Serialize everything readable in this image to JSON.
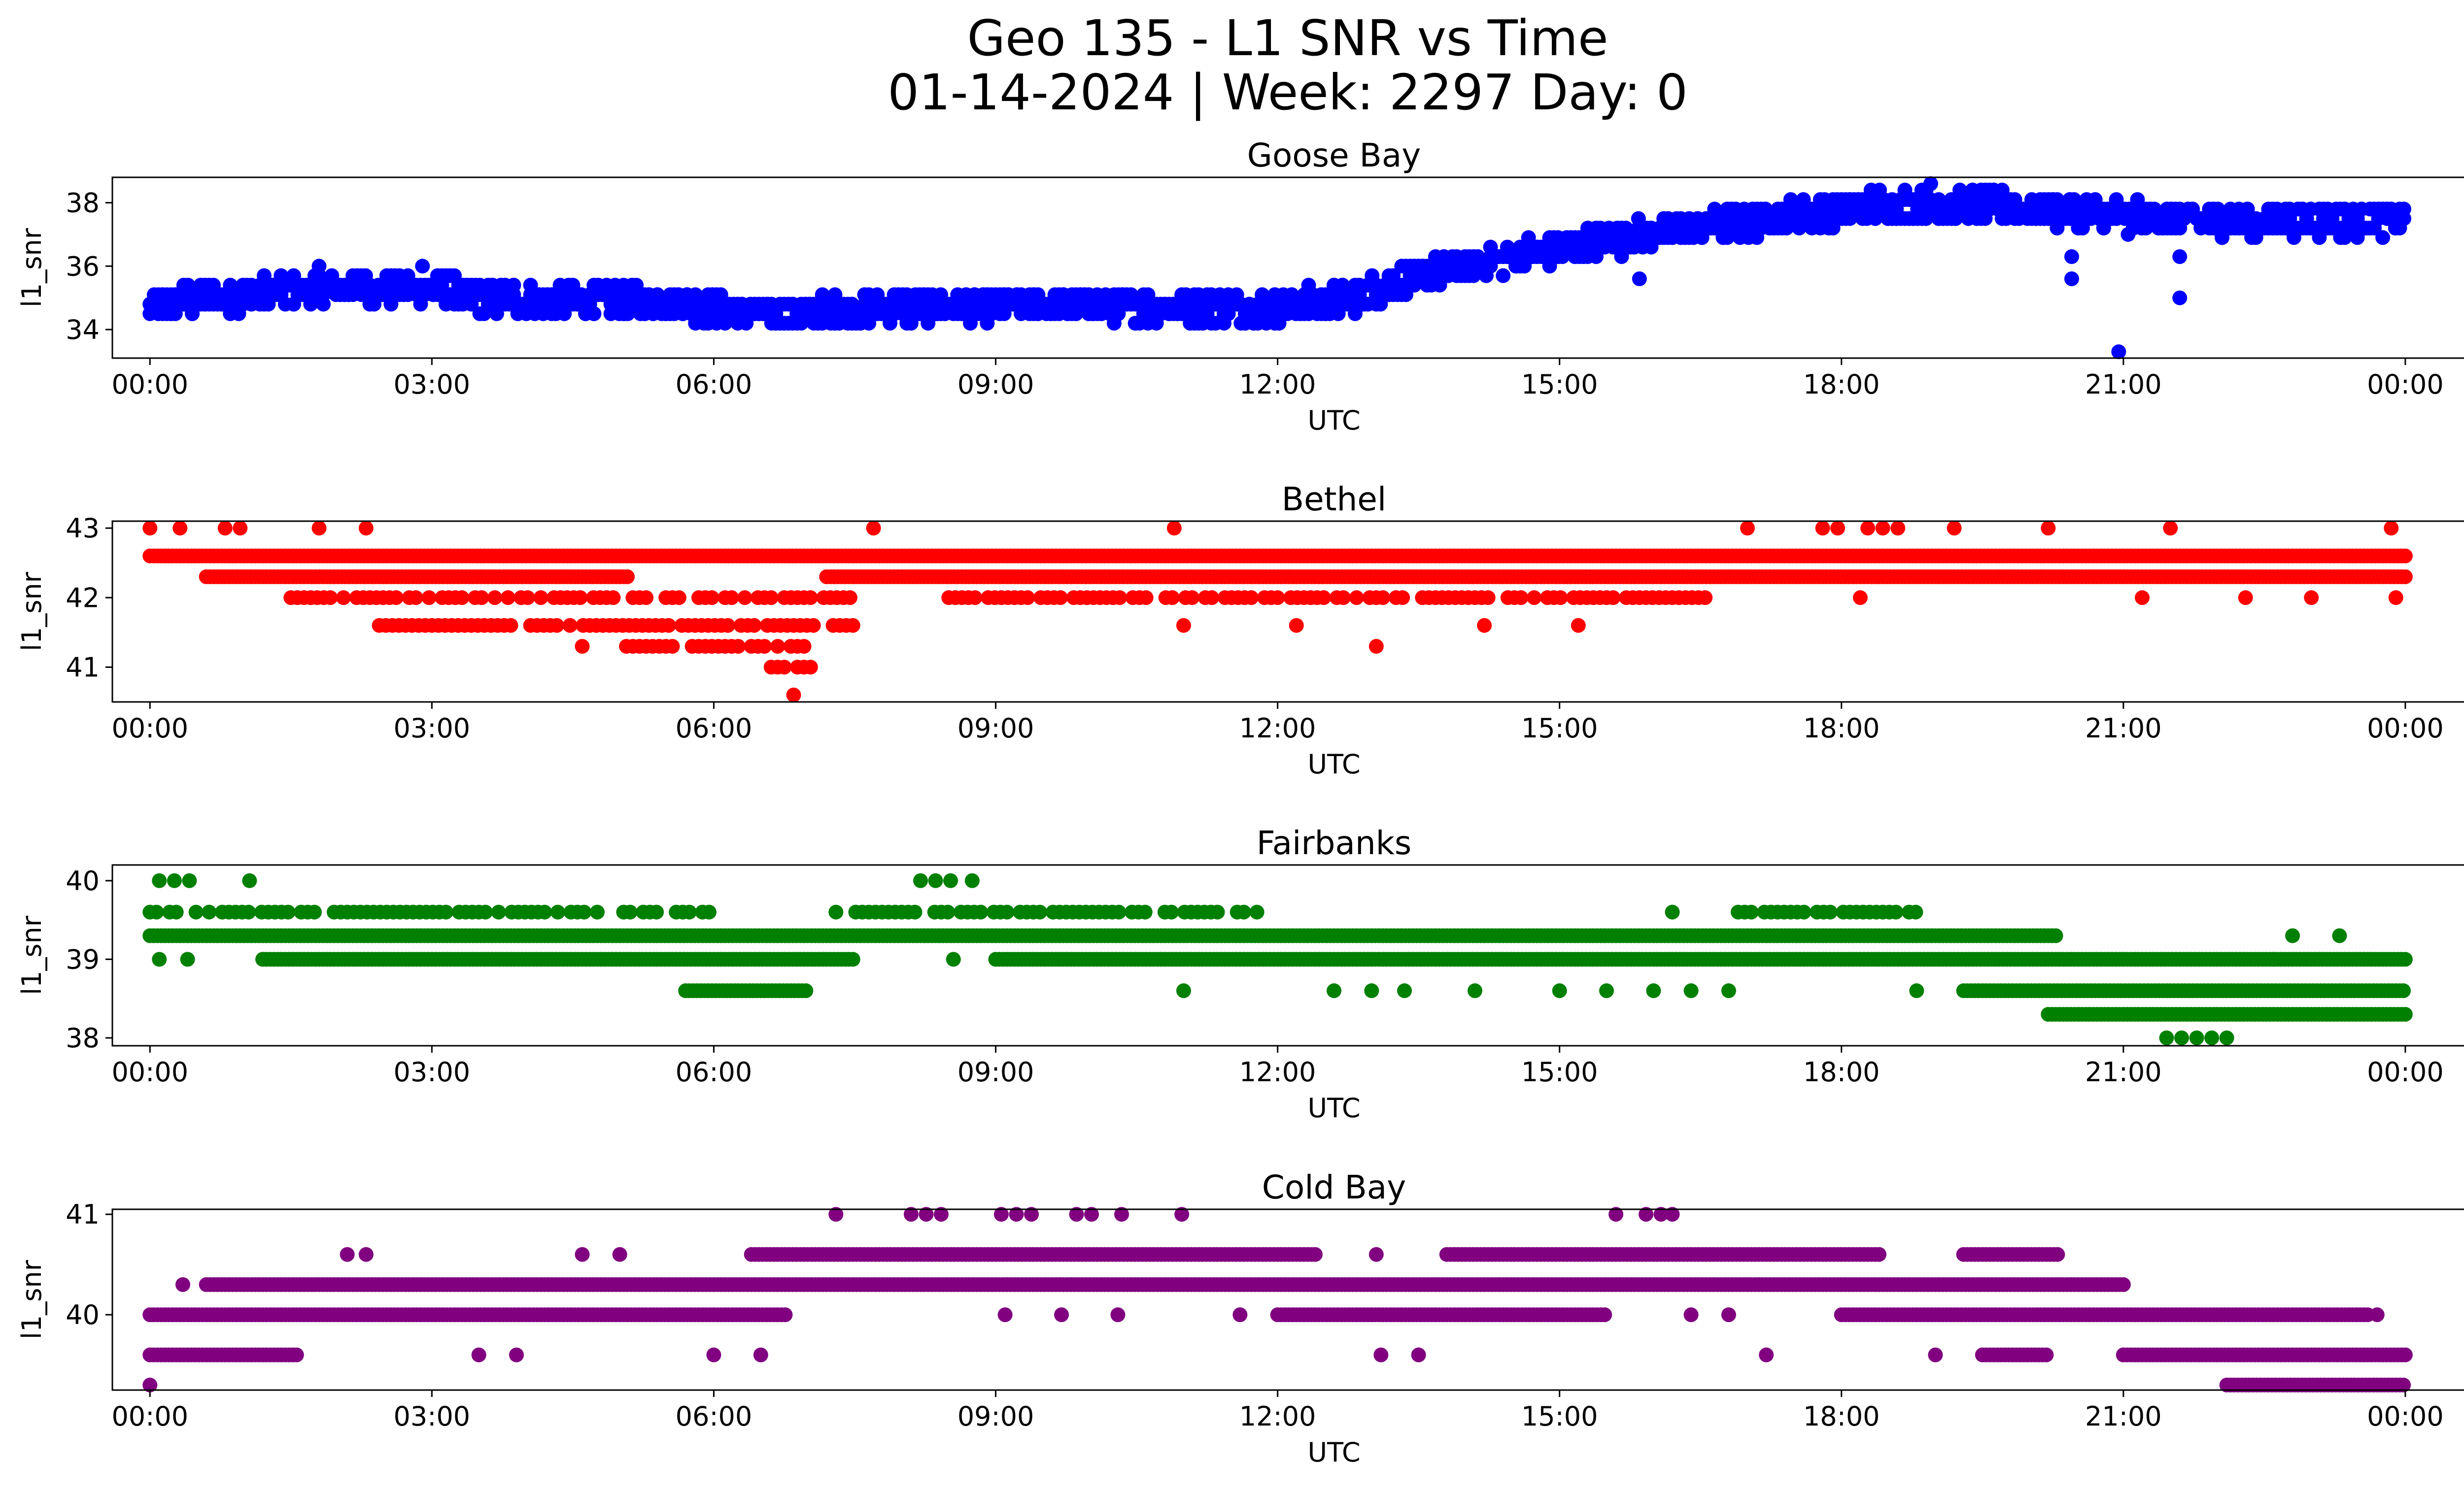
{
  "figure": {
    "title_line1": "Geo 135 - L1 SNR vs Time",
    "title_line2": "01-14-2024 | Week: 2297 Day: 0"
  },
  "chart_data": [
    {
      "type": "scatter",
      "title": "Goose Bay",
      "xlabel": "UTC",
      "ylabel": "l1_snr",
      "color": "#0000ff",
      "xlim_hours": [
        -0.4,
        25.6
      ],
      "ylim": [
        33.1,
        38.8
      ],
      "yticks": [
        34,
        36,
        38
      ],
      "xticks": [
        "00:00",
        "03:00",
        "06:00",
        "09:00",
        "12:00",
        "15:00",
        "18:00",
        "21:00",
        "00:00"
      ],
      "x_unit": "hours UTC",
      "y_step": 0.3,
      "trend_hours": [
        0,
        0.3,
        1,
        2,
        3,
        3.5,
        4.5,
        5.5,
        6.5,
        7.5,
        9,
        10.5,
        12,
        12.8,
        13.5,
        14.5,
        15.5,
        16.5,
        17.5,
        18.3,
        19.5,
        20.5,
        21.5,
        22.5,
        24
      ],
      "trend_snr": [
        34.6,
        34.9,
        35.1,
        35.3,
        35.3,
        35.0,
        34.9,
        34.9,
        34.5,
        34.6,
        34.8,
        34.7,
        34.7,
        35.0,
        35.7,
        36.3,
        36.8,
        37.2,
        37.6,
        37.9,
        37.9,
        37.7,
        37.5,
        37.4,
        37.5
      ],
      "band_halfwidth": 0.45,
      "outliers": [
        {
          "x": 15.85,
          "y": 35.6
        },
        {
          "x": 20.45,
          "y": 36.3
        },
        {
          "x": 20.45,
          "y": 35.6
        },
        {
          "x": 20.95,
          "y": 33.3
        },
        {
          "x": 21.05,
          "y": 37.0
        },
        {
          "x": 21.6,
          "y": 36.3
        },
        {
          "x": 21.6,
          "y": 35.0
        },
        {
          "x": 18.95,
          "y": 38.6
        },
        {
          "x": 2.9,
          "y": 36.0
        },
        {
          "x": 1.8,
          "y": 36.0
        }
      ]
    },
    {
      "type": "scatter",
      "title": "Bethel",
      "xlabel": "UTC",
      "ylabel": "l1_snr",
      "color": "#ff0000",
      "xlim_hours": [
        -0.4,
        25.6
      ],
      "ylim": [
        40.5,
        43.1
      ],
      "yticks": [
        41,
        42,
        43
      ],
      "xticks": [
        "00:00",
        "03:00",
        "06:00",
        "09:00",
        "12:00",
        "15:00",
        "18:00",
        "21:00",
        "00:00"
      ],
      "x_unit": "hours UTC",
      "levels": [
        {
          "y": 42.6,
          "segments": [
            [
              0,
              24
            ]
          ],
          "density": "solid"
        },
        {
          "y": 42.3,
          "segments": [
            [
              0.6,
              5.1
            ],
            [
              7.2,
              24
            ]
          ],
          "density": "solid"
        },
        {
          "y": 42.0,
          "segments": [
            [
              1.5,
              7.5
            ],
            [
              8.5,
              16.6
            ]
          ],
          "density": "medium"
        },
        {
          "y": 41.6,
          "segments": [
            [
              2.3,
              7.5
            ]
          ],
          "density": "medium"
        },
        {
          "y": 41.3,
          "segments": [
            [
              5.0,
              7.0
            ]
          ],
          "density": "medium"
        },
        {
          "y": 43.0,
          "segments": [
            [
              0,
              1.1
            ],
            [
              17.0,
              18.7
            ]
          ],
          "density": "sparse"
        },
        {
          "y": 41.0,
          "segments": [
            [
              6.4,
              7.1
            ]
          ],
          "density": "medium"
        }
      ],
      "scatter_points": [
        {
          "x": 6.85,
          "y": 40.6
        },
        {
          "x": 10.9,
          "y": 43.0
        },
        {
          "x": 13.05,
          "y": 41.3
        },
        {
          "x": 21.5,
          "y": 43.0
        },
        {
          "x": 23.85,
          "y": 43.0
        },
        {
          "x": 1.8,
          "y": 43.0
        },
        {
          "x": 2.3,
          "y": 43.0
        },
        {
          "x": 7.7,
          "y": 43.0
        },
        {
          "x": 4.6,
          "y": 41.3
        },
        {
          "x": 18.2,
          "y": 42.0
        },
        {
          "x": 11.0,
          "y": 41.6
        },
        {
          "x": 12.2,
          "y": 41.6
        },
        {
          "x": 14.2,
          "y": 41.6
        },
        {
          "x": 15.2,
          "y": 41.6
        },
        {
          "x": 19.2,
          "y": 43.0
        },
        {
          "x": 20.2,
          "y": 43.0
        },
        {
          "x": 21.2,
          "y": 42.0
        },
        {
          "x": 22.3,
          "y": 42.0
        },
        {
          "x": 23.0,
          "y": 42.0
        },
        {
          "x": 23.9,
          "y": 42.0
        }
      ]
    },
    {
      "type": "scatter",
      "title": "Fairbanks",
      "xlabel": "UTC",
      "ylabel": "l1_snr",
      "color": "#008000",
      "xlim_hours": [
        -0.4,
        25.6
      ],
      "ylim": [
        37.9,
        40.2
      ],
      "yticks": [
        38,
        39,
        40
      ],
      "xticks": [
        "00:00",
        "03:00",
        "06:00",
        "09:00",
        "12:00",
        "15:00",
        "18:00",
        "21:00",
        "00:00"
      ],
      "x_unit": "hours UTC",
      "levels": [
        {
          "y": 39.3,
          "segments": [
            [
              0,
              20.3
            ]
          ],
          "density": "solid"
        },
        {
          "y": 39.6,
          "segments": [
            [
              0,
              6.0
            ],
            [
              7.3,
              11.8
            ],
            [
              16.9,
              18.8
            ]
          ],
          "density": "medium"
        },
        {
          "y": 39.0,
          "segments": [
            [
              1.2,
              7.5
            ],
            [
              9.0,
              24
            ]
          ],
          "density": "solid"
        },
        {
          "y": 38.6,
          "segments": [
            [
              5.7,
              7.0
            ],
            [
              19.3,
              24
            ]
          ],
          "density": "solid"
        },
        {
          "y": 38.3,
          "segments": [
            [
              20.2,
              24
            ]
          ],
          "density": "solid"
        },
        {
          "y": 38.0,
          "segments": [
            [
              21.3,
              22.1
            ]
          ],
          "density": "sparse"
        },
        {
          "y": 40.0,
          "segments": [
            [
              0.1,
              1.2
            ],
            [
              8.2,
              8.6
            ]
          ],
          "density": "sparse"
        }
      ],
      "scatter_points": [
        {
          "x": 8.75,
          "y": 40.0
        },
        {
          "x": 0.1,
          "y": 39.0
        },
        {
          "x": 0.4,
          "y": 39.0
        },
        {
          "x": 8.55,
          "y": 39.0
        },
        {
          "x": 11.0,
          "y": 38.6
        },
        {
          "x": 12.6,
          "y": 38.6
        },
        {
          "x": 13.0,
          "y": 38.6
        },
        {
          "x": 13.35,
          "y": 38.6
        },
        {
          "x": 14.1,
          "y": 38.6
        },
        {
          "x": 15.0,
          "y": 38.6
        },
        {
          "x": 15.5,
          "y": 38.6
        },
        {
          "x": 16.0,
          "y": 38.6
        },
        {
          "x": 16.4,
          "y": 38.6
        },
        {
          "x": 16.8,
          "y": 38.6
        },
        {
          "x": 18.8,
          "y": 38.6
        },
        {
          "x": 16.2,
          "y": 39.6
        },
        {
          "x": 22.8,
          "y": 39.3
        },
        {
          "x": 23.3,
          "y": 39.3
        },
        {
          "x": 22.6,
          "y": 39.0
        }
      ]
    },
    {
      "type": "scatter",
      "title": "Cold Bay",
      "xlabel": "UTC",
      "ylabel": "l1_snr",
      "color": "#800080",
      "xlim_hours": [
        -0.4,
        25.6
      ],
      "ylim": [
        39.25,
        41.05
      ],
      "yticks": [
        40,
        41
      ],
      "xticks": [
        "00:00",
        "03:00",
        "06:00",
        "09:00",
        "12:00",
        "15:00",
        "18:00",
        "21:00",
        "00:00"
      ],
      "x_unit": "hours UTC",
      "levels": [
        {
          "y": 40.3,
          "segments": [
            [
              0.6,
              21.0
            ]
          ],
          "density": "solid"
        },
        {
          "y": 40.0,
          "segments": [
            [
              0,
              6.8
            ],
            [
              12.0,
              15.5
            ],
            [
              18.0,
              23.6
            ]
          ],
          "density": "solid"
        },
        {
          "y": 40.6,
          "segments": [
            [
              6.4,
              12.4
            ],
            [
              13.8,
              18.4
            ],
            [
              19.3,
              20.3
            ]
          ],
          "density": "solid"
        },
        {
          "y": 39.6,
          "segments": [
            [
              0,
              1.6
            ],
            [
              19.5,
              20.2
            ],
            [
              21.0,
              24
            ]
          ],
          "density": "solid"
        },
        {
          "y": 41.0,
          "segments": [
            [
              7.3,
              11.1
            ],
            [
              15.6,
              16.2
            ]
          ],
          "density": "sparse"
        },
        {
          "y": 39.3,
          "segments": [
            [
              22.1,
              24
            ]
          ],
          "density": "solid"
        }
      ],
      "scatter_points": [
        {
          "x": 0.0,
          "y": 39.3
        },
        {
          "x": 0.35,
          "y": 40.3
        },
        {
          "x": 2.1,
          "y": 40.6
        },
        {
          "x": 2.3,
          "y": 40.6
        },
        {
          "x": 3.5,
          "y": 39.6
        },
        {
          "x": 3.9,
          "y": 39.6
        },
        {
          "x": 4.6,
          "y": 40.6
        },
        {
          "x": 5.0,
          "y": 40.6
        },
        {
          "x": 6.0,
          "y": 39.6
        },
        {
          "x": 6.5,
          "y": 39.6
        },
        {
          "x": 9.1,
          "y": 40.0
        },
        {
          "x": 9.7,
          "y": 40.0
        },
        {
          "x": 10.3,
          "y": 40.0
        },
        {
          "x": 11.6,
          "y": 40.0
        },
        {
          "x": 13.1,
          "y": 39.6
        },
        {
          "x": 13.5,
          "y": 39.6
        },
        {
          "x": 13.05,
          "y": 40.6
        },
        {
          "x": 16.2,
          "y": 41.0
        },
        {
          "x": 16.4,
          "y": 40.0
        },
        {
          "x": 16.8,
          "y": 40.0
        },
        {
          "x": 17.2,
          "y": 39.6
        },
        {
          "x": 19.0,
          "y": 39.6
        },
        {
          "x": 21.0,
          "y": 39.6
        },
        {
          "x": 23.7,
          "y": 40.0
        }
      ]
    }
  ]
}
